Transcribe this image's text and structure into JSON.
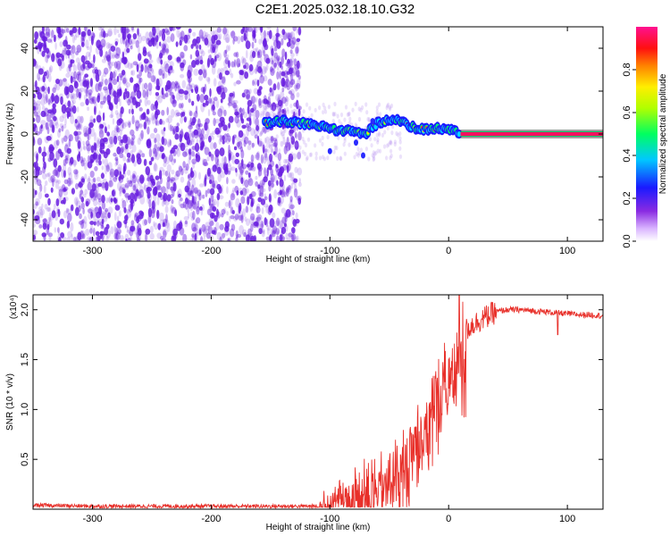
{
  "page": {
    "title": "C2E1.2025.032.18.10.G32"
  },
  "colors": {
    "snr_line": "#e8302a",
    "spectrum_noise": "#6a1fe0",
    "carrier_line": "#ff1060"
  },
  "chart_data": [
    {
      "type": "heatmap",
      "title": "C2E1.2025.032.18.10.G32",
      "xlabel": "Height of straight line (km)",
      "ylabel": "Frequency (Hz)",
      "xlim": [
        -350,
        130
      ],
      "ylim": [
        -50,
        50
      ],
      "x_ticks": [
        -300,
        -200,
        -100,
        0,
        100
      ],
      "y_ticks": [
        -40,
        -20,
        0,
        20,
        40
      ],
      "noise_region_x": [
        -350,
        -125
      ],
      "signal_track": {
        "x": [
          -155,
          -140,
          -125,
          -110,
          -95,
          -80,
          -70,
          -60,
          -50,
          -40,
          -30,
          -20,
          -10,
          0,
          10,
          130
        ],
        "freq": [
          5,
          6,
          5,
          4,
          2,
          1,
          0,
          5,
          7,
          6,
          3,
          2,
          3,
          2,
          0,
          0
        ]
      },
      "colorbar": {
        "label": "Normalized spectral amplitude",
        "range": [
          0.0,
          1.0
        ],
        "ticks": [
          "0.0",
          "0.2",
          "0.4",
          "0.6",
          "0.8"
        ]
      },
      "grid": false
    },
    {
      "type": "line",
      "xlabel": "Height of straight line (km)",
      "ylabel": "SNR (10 * v/v)",
      "y_multiplier": "(x10⁴)",
      "xlim": [
        -350,
        130
      ],
      "ylim": [
        0,
        2.15
      ],
      "x_ticks": [
        -300,
        -200,
        -100,
        0,
        100
      ],
      "y_ticks": [
        "0.5",
        "1.0",
        "1.5",
        "2.0"
      ],
      "series": [
        {
          "color": "#e8302a",
          "x": [
            -350,
            -300,
            -250,
            -200,
            -150,
            -110,
            -100,
            -90,
            -80,
            -70,
            -60,
            -50,
            -40,
            -30,
            -20,
            -10,
            0,
            5,
            10,
            20,
            30,
            40,
            50,
            60,
            70,
            80,
            90,
            100,
            110,
            120,
            130
          ],
          "y": [
            0.04,
            0.03,
            0.03,
            0.03,
            0.03,
            0.03,
            0.1,
            0.2,
            0.25,
            0.3,
            0.35,
            0.4,
            0.55,
            0.75,
            1.0,
            1.3,
            1.5,
            1.6,
            1.75,
            1.85,
            1.92,
            1.98,
            2.0,
            2.0,
            1.99,
            1.98,
            1.97,
            1.96,
            1.95,
            1.95,
            1.94
          ]
        }
      ],
      "grid": false
    }
  ]
}
